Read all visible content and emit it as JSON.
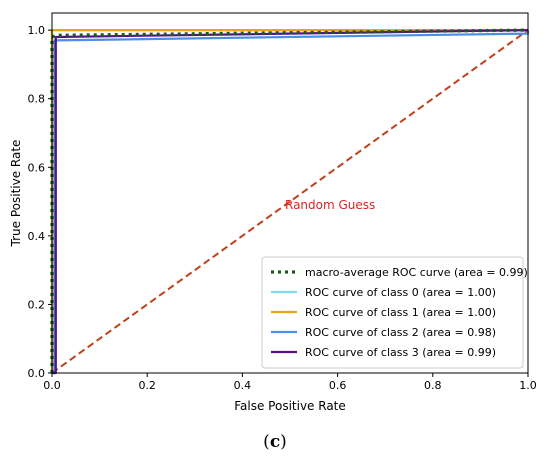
{
  "caption": {
    "open": "(",
    "letter": "c",
    "close": ")"
  },
  "chart_data": {
    "type": "line",
    "title": "",
    "xlabel": "False Positive Rate",
    "ylabel": "True Positive Rate",
    "xlim": [
      0.0,
      1.0
    ],
    "ylim": [
      0.0,
      1.05
    ],
    "xticks": [
      "0.0",
      "0.2",
      "0.4",
      "0.6",
      "0.8",
      "1.0"
    ],
    "yticks": [
      "0.0",
      "0.2",
      "0.4",
      "0.6",
      "0.8",
      "1.0"
    ],
    "xtick_values": [
      0,
      0.2,
      0.4,
      0.6,
      0.8,
      1.0
    ],
    "ytick_values": [
      0,
      0.2,
      0.4,
      0.6,
      0.8,
      1.0
    ],
    "grid": false,
    "legend_position": "lower-right",
    "annotations": [
      {
        "text": "Random Guess",
        "x": 0.5,
        "y": 0.49,
        "color": "#dd2222"
      }
    ],
    "series": [
      {
        "name": "ROC curve of class 0 (area = 1.00)",
        "color": "#7fdcf0",
        "style": "solid",
        "x": [
          0.0,
          0.0,
          1.0
        ],
        "y": [
          0.0,
          1.0,
          1.0
        ]
      },
      {
        "name": "ROC curve of class 1 (area = 1.00)",
        "color": "#e6a817",
        "style": "solid",
        "x": [
          0.0,
          0.0,
          1.0
        ],
        "y": [
          0.0,
          1.0,
          1.0
        ]
      },
      {
        "name": "ROC curve of class 2 (area = 0.98)",
        "color": "#4a8fe8",
        "style": "solid",
        "x": [
          0.0,
          0.005,
          0.005,
          1.0,
          1.0
        ],
        "y": [
          0.0,
          0.0,
          0.97,
          0.99,
          1.0
        ]
      },
      {
        "name": "ROC curve of class 3 (area = 0.99)",
        "color": "#5a0f8a",
        "style": "solid",
        "x": [
          0.0,
          0.008,
          0.008,
          1.0
        ],
        "y": [
          0.0,
          0.0,
          0.98,
          1.0
        ]
      },
      {
        "name": "macro-average ROC curve (area = 0.99)",
        "color": "#1a5c1a",
        "style": "dotted",
        "x": [
          0.0,
          0.0,
          0.01,
          1.0
        ],
        "y": [
          0.0,
          0.98,
          0.985,
          1.0
        ]
      },
      {
        "name": "",
        "color": "#c0401a",
        "style": "dashed",
        "x": [
          0.0,
          1.0
        ],
        "y": [
          0.0,
          1.0
        ]
      }
    ],
    "legend_order": [
      4,
      0,
      1,
      2,
      3
    ]
  }
}
